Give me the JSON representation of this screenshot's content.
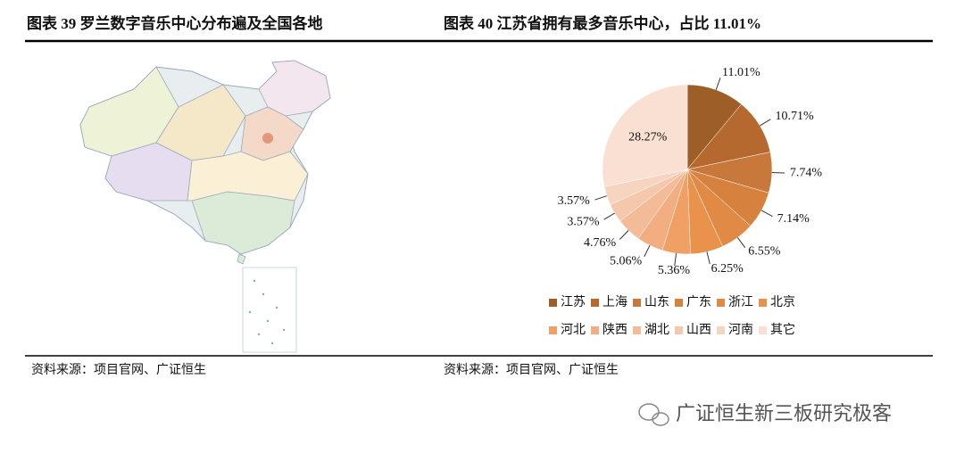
{
  "map_panel": {
    "title": "图表 39 罗兰数字音乐中心分布遍及全国各地",
    "source": "资料来源：项目官网、广证恒生"
  },
  "chart_data": {
    "type": "pie",
    "title": "图表 40 江苏省拥有最多音乐中心，占比 11.01%",
    "categories": [
      "江苏",
      "上海",
      "山东",
      "广东",
      "浙江",
      "北京",
      "河北",
      "陕西",
      "湖北",
      "山西",
      "河南",
      "其它"
    ],
    "values": [
      11.01,
      10.71,
      7.74,
      7.14,
      6.55,
      6.25,
      5.36,
      5.06,
      4.76,
      3.57,
      3.57,
      28.27
    ],
    "value_labels": [
      "11.01%",
      "10.71%",
      "7.74%",
      "7.14%",
      "6.55%",
      "6.25%",
      "5.36%",
      "5.06%",
      "4.76%",
      "3.57%",
      "3.57%",
      "28.27%"
    ],
    "colors": [
      "#9e5e28",
      "#b5692e",
      "#c8783a",
      "#d6823e",
      "#e08a45",
      "#e8924c",
      "#f0a064",
      "#f2ae80",
      "#f4bb98",
      "#f5c8ad",
      "#f7d4c0",
      "#f9e0d2"
    ],
    "legend": "bottom",
    "source": "资料来源：项目官网、广证恒生"
  },
  "watermark": "广证恒生新三板研究极客"
}
